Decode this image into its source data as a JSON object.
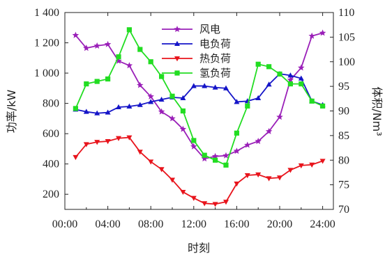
{
  "chart_data": {
    "type": "line",
    "title": "",
    "xlabel": "时刻",
    "ylabel_left": "功率/kW",
    "ylabel_right": "体积/Nm³",
    "x_ticks": [
      "00:00",
      "04:00",
      "08:00",
      "12:00",
      "16:00",
      "20:00",
      "24:00"
    ],
    "y_left_ticks": [
      "200",
      "400",
      "600",
      "800",
      "1 000",
      "1 200",
      "1 400"
    ],
    "y_right_ticks": [
      "70",
      "75",
      "80",
      "85",
      "90",
      "95",
      "100",
      "105",
      "110"
    ],
    "x_range": [
      0,
      25
    ],
    "y_left_range": [
      100,
      1400
    ],
    "y_right_range": [
      70,
      110
    ],
    "grid": false,
    "legend_position": "top-center",
    "x": [
      1,
      2,
      3,
      4,
      5,
      6,
      7,
      8,
      9,
      10,
      11,
      12,
      13,
      14,
      15,
      16,
      17,
      18,
      19,
      20,
      21,
      22,
      23,
      24
    ],
    "series": [
      {
        "name": "风电",
        "axis": "left",
        "color": "#9a1fb8",
        "marker": "star",
        "values": [
          1250,
          1165,
          1180,
          1190,
          1080,
          1050,
          920,
          845,
          745,
          700,
          630,
          515,
          435,
          450,
          455,
          485,
          525,
          550,
          615,
          710,
          955,
          1035,
          1245,
          1265
        ]
      },
      {
        "name": "电负荷",
        "axis": "left",
        "color": "#1515c8",
        "marker": "triangle-up",
        "values": [
          760,
          745,
          735,
          740,
          775,
          780,
          790,
          810,
          825,
          840,
          835,
          915,
          915,
          905,
          900,
          810,
          815,
          835,
          925,
          995,
          985,
          965,
          815,
          790
        ]
      },
      {
        "name": "热负荷",
        "axis": "left",
        "color": "#e8141c",
        "marker": "triangle-down",
        "values": [
          445,
          530,
          545,
          550,
          570,
          575,
          480,
          415,
          365,
          295,
          215,
          175,
          140,
          135,
          150,
          270,
          325,
          330,
          305,
          310,
          360,
          390,
          395,
          420
        ]
      },
      {
        "name": "氢负荷",
        "axis": "right",
        "color": "#22dd22",
        "marker": "square",
        "values": [
          90.5,
          95.5,
          96,
          96.5,
          101,
          106.5,
          102.5,
          100,
          97,
          93,
          90,
          84,
          81,
          80,
          79,
          85.5,
          91,
          99.5,
          99,
          97.5,
          95.5,
          95.5,
          92,
          91
        ]
      }
    ]
  }
}
